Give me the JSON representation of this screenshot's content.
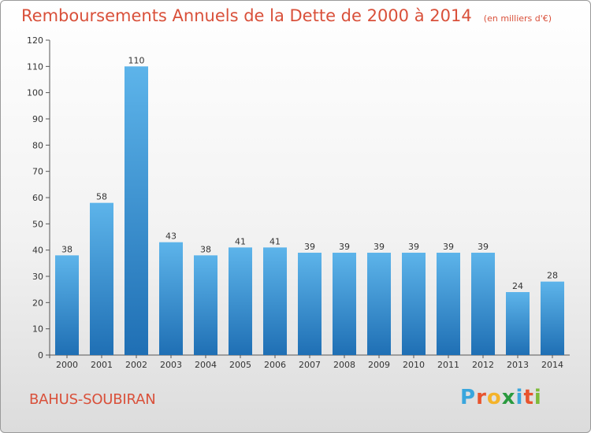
{
  "header": {
    "title": "Remboursements Annuels de la Dette de 2000 à 2014",
    "unit": "(en milliers d'€)"
  },
  "commune": "BAHUS-SOUBIRAN",
  "logo": {
    "text": "Proxiti",
    "colors": [
      "#3aa6dd",
      "#e8542e",
      "#f4b32a",
      "#2a9a3f",
      "#3aa6dd",
      "#e8542e",
      "#7dbb3a"
    ]
  },
  "colors": {
    "bar_light": "#5db4ea",
    "bar_dark": "#1f6fb4",
    "title": "#d9503a",
    "axis": "#555555"
  },
  "chart_data": {
    "type": "bar",
    "title": "Remboursements Annuels de la Dette de 2000 à 2014",
    "subtitle": "(en milliers d'€)",
    "xlabel": "",
    "ylabel": "",
    "categories": [
      "2000",
      "2001",
      "2002",
      "2003",
      "2004",
      "2005",
      "2006",
      "2007",
      "2008",
      "2009",
      "2010",
      "2011",
      "2012",
      "2013",
      "2014"
    ],
    "values": [
      38,
      58,
      110,
      43,
      38,
      41,
      41,
      39,
      39,
      39,
      39,
      39,
      39,
      24,
      28
    ],
    "ylim": [
      0,
      120
    ],
    "yticks": [
      0,
      10,
      20,
      30,
      40,
      50,
      60,
      70,
      80,
      90,
      100,
      110,
      120
    ],
    "grid": false,
    "legend": "none"
  }
}
